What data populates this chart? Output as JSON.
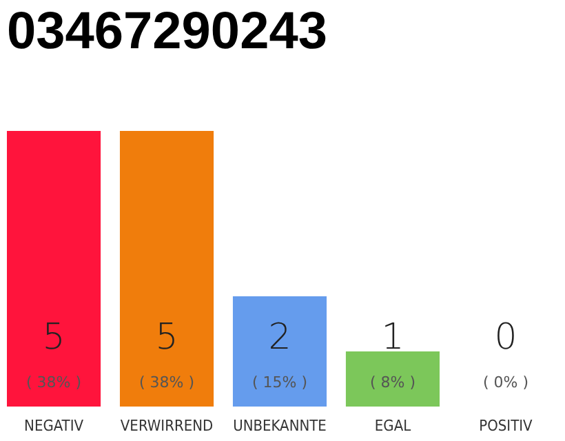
{
  "chart_data": {
    "type": "bar",
    "title": "03467290243",
    "categories": [
      "NEGATIV",
      "VERWIRREND",
      "UNBEKANNTE",
      "EGAL",
      "POSITIV"
    ],
    "values": [
      5,
      5,
      2,
      1,
      0
    ],
    "colors": [
      "#ff143c",
      "#f07d0c",
      "#659ced",
      "#7cc75a",
      "#2ea84a"
    ],
    "data_labels": true,
    "tick_labels": "x",
    "annotations": [
      "( 38% )",
      "( 38% )",
      "( 15% )",
      "( 8% )",
      "( 0% )"
    ]
  }
}
